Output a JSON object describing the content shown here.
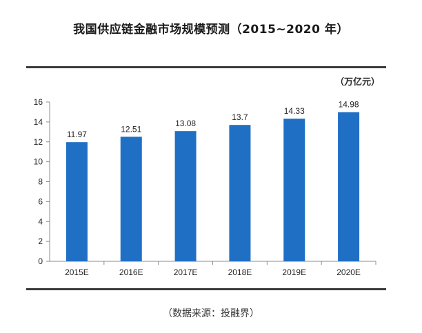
{
  "title": "我国供应链金融市场规模预测（2015~2020 年）",
  "unit": "（万亿元）",
  "source": "（数据来源：投融界）",
  "colors": {
    "bar": "#1f6fc5",
    "axis": "#8c8c8c",
    "text": "#222222"
  },
  "chart_data": {
    "type": "bar",
    "categories": [
      "2015E",
      "2016E",
      "2017E",
      "2018E",
      "2019E",
      "2020E"
    ],
    "values": [
      11.97,
      12.51,
      13.08,
      13.7,
      14.33,
      14.98
    ],
    "data_labels": [
      "11.97",
      "12.51",
      "13.08",
      "13.7",
      "14.33",
      "14.98"
    ],
    "yticks": [
      0,
      2,
      4,
      6,
      8,
      10,
      12,
      14,
      16
    ],
    "ylim": [
      0,
      16
    ],
    "grid": false,
    "legend": "none"
  }
}
